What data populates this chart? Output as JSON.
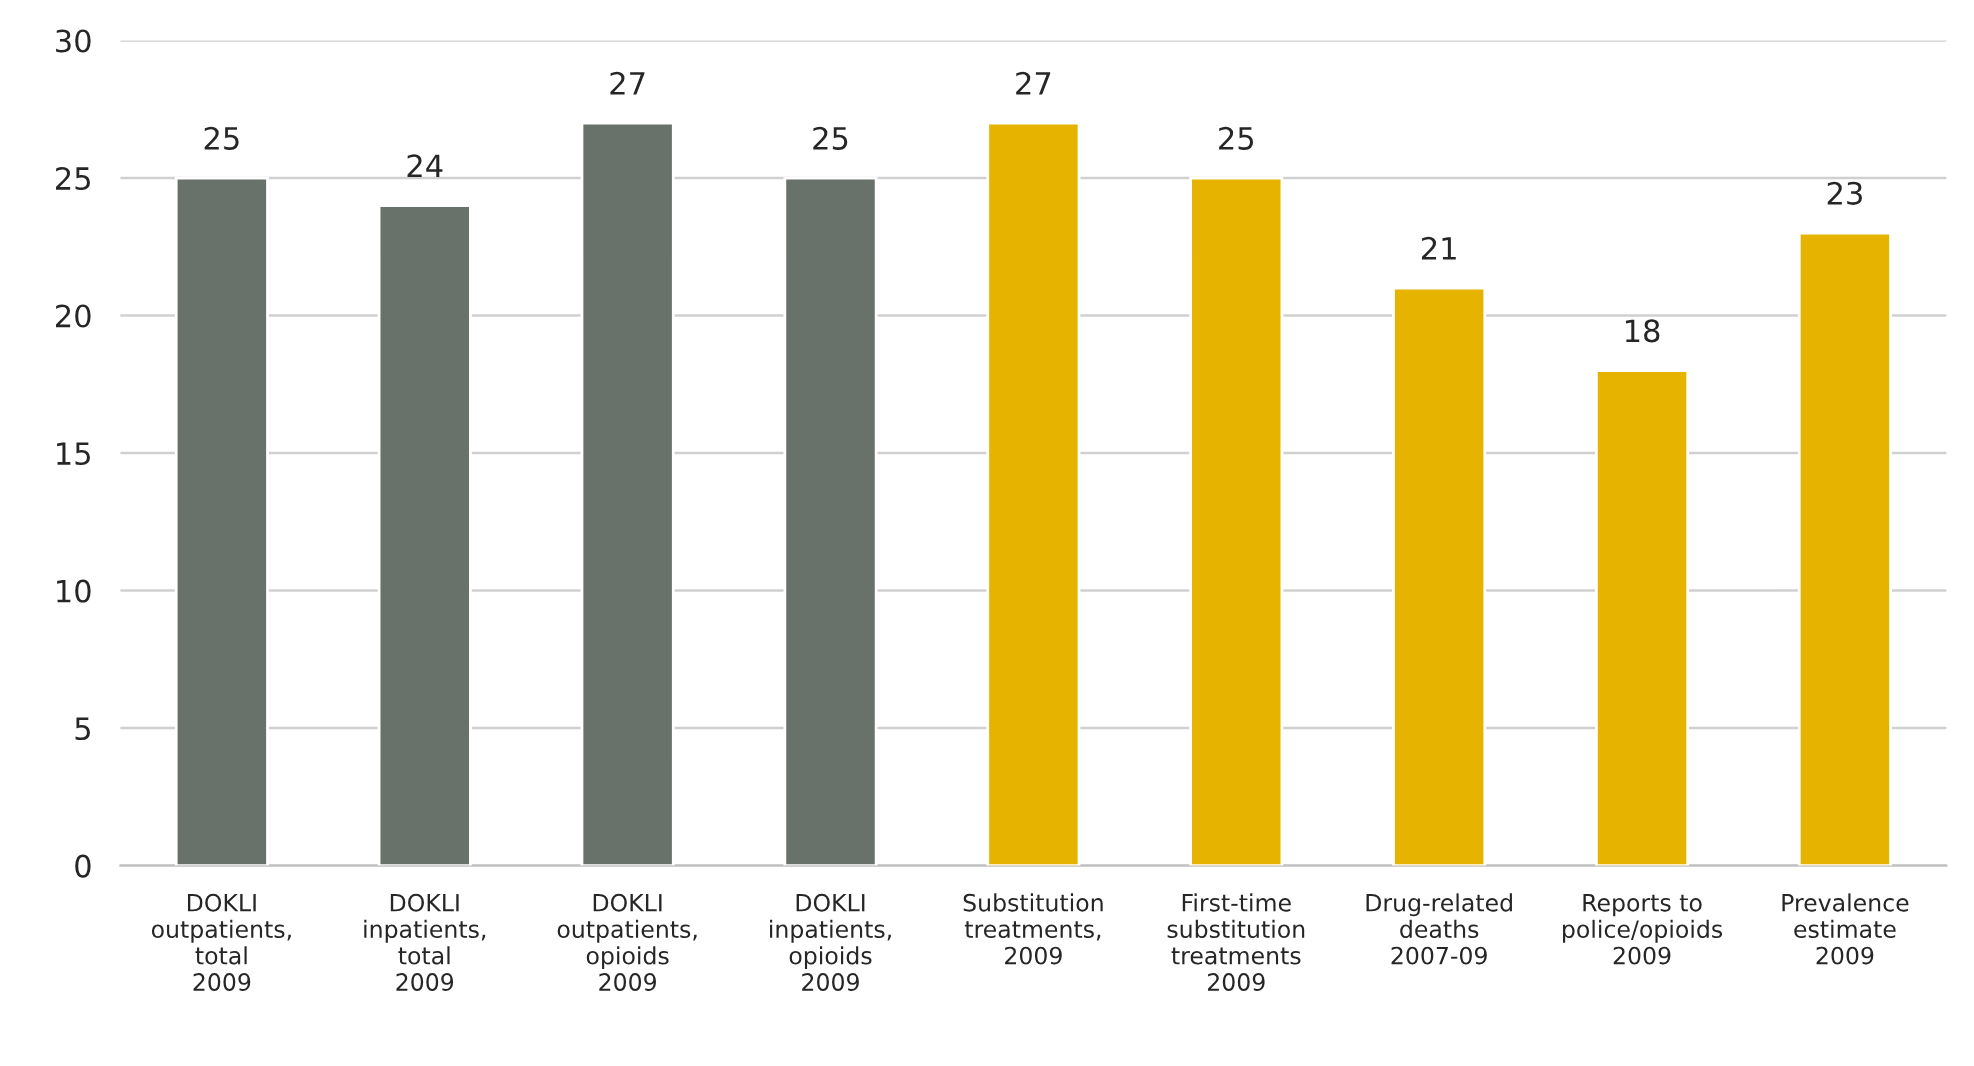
{
  "chart_data": {
    "type": "bar",
    "categories": [
      "DOKLI\noutpatients,\ntotal\n2009",
      "DOKLI\ninpatients,\ntotal\n2009",
      "DOKLI\noutpatients,\nopioids\n2009",
      "DOKLI\ninpatients,\nopioids\n2009",
      "Substitution\ntreatments,\n2009",
      "First-time\nsubstitution\ntreatments\n2009",
      "Drug-related\ndeaths\n2007-09",
      "Reports to\npolice/opioids\n2009",
      "Prevalence\nestimate\n2009"
    ],
    "values": [
      25,
      24,
      27,
      25,
      27,
      25,
      21,
      18,
      23
    ],
    "colors": [
      "#68716a",
      "#68716a",
      "#68716a",
      "#68716a",
      "#e6b400",
      "#e6b400",
      "#e6b400",
      "#e6b400",
      "#e6b400"
    ],
    "ylim": [
      0,
      30
    ],
    "yticks": [
      0,
      5,
      10,
      15,
      20,
      25,
      30
    ],
    "grid": "y",
    "data_labels": true
  }
}
